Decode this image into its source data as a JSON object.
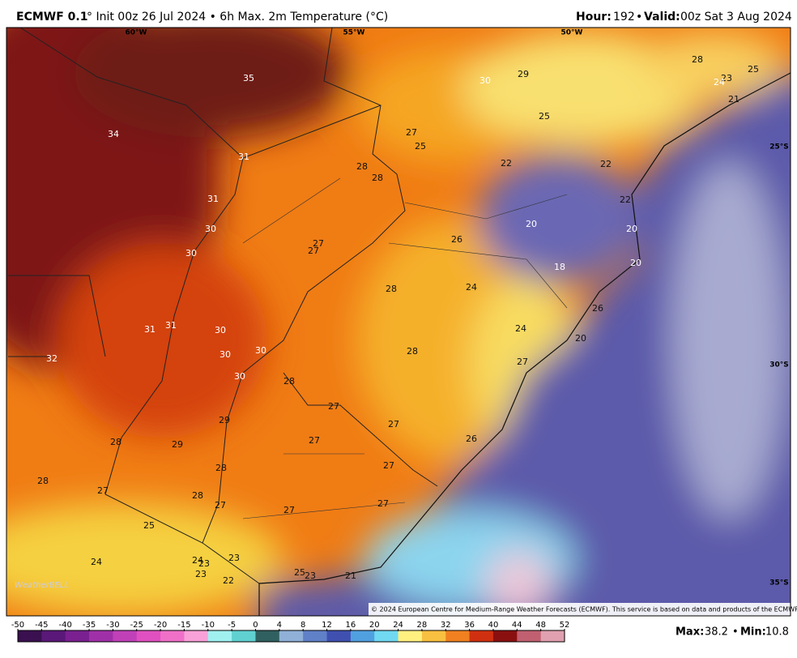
{
  "header": {
    "model": "ECMWF 0.1",
    "description": "° Init 00z 26 Jul 2024 • 6h Max. 2m Temperature (°C)",
    "hour_label": "Hour:",
    "hour": "192",
    "separator": "•",
    "valid_label": "Valid:",
    "valid": "00z Sat 3 Aug 2024"
  },
  "map": {
    "lon_labels": [
      "60°W",
      "55°W",
      "50°W"
    ],
    "lat_labels": [
      "25°S",
      "30°S",
      "35°S"
    ],
    "temps": [
      35,
      34,
      31,
      31,
      30,
      30,
      31,
      31,
      30,
      30,
      30,
      30,
      32,
      28,
      27,
      27,
      27,
      29,
      28,
      29,
      28,
      27,
      28,
      27,
      28,
      27,
      27,
      27,
      25,
      24,
      24,
      23,
      23,
      23,
      22,
      25,
      23,
      21,
      26,
      27,
      24,
      20,
      26,
      28,
      24,
      28,
      26,
      27,
      27,
      28,
      28,
      27,
      25,
      30,
      29,
      25,
      22,
      22,
      22,
      20,
      20,
      20,
      18,
      28,
      25,
      23,
      24,
      21
    ],
    "watermark": "WeatherBELL",
    "copyright": "© 2024 European Centre for Medium-Range Weather Forecasts (ECMWF). This service is based on data and products of the ECMWF."
  },
  "colorbar": {
    "ticks": [
      -50,
      -45,
      -40,
      -35,
      -30,
      -25,
      -20,
      -15,
      -10,
      -5,
      0,
      4,
      8,
      12,
      16,
      20,
      24,
      28,
      32,
      36,
      40,
      44,
      48,
      52
    ]
  },
  "footer": {
    "max_label": "Max:",
    "max": 38.2,
    "separator": "•",
    "min_label": "Min:",
    "min": 10.8
  }
}
